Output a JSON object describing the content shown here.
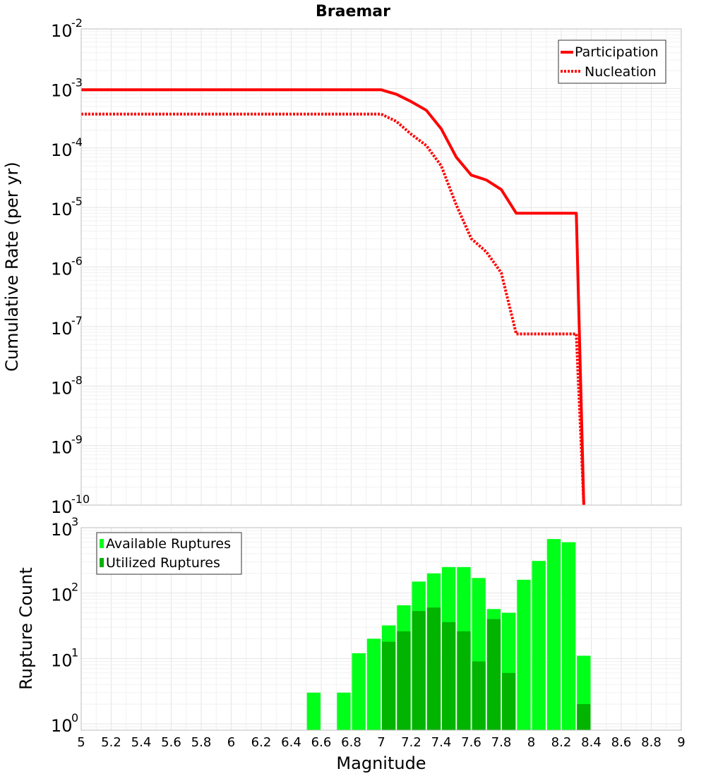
{
  "colors": {
    "participation": "#ff0000",
    "nucleation": "#ff0000",
    "available": "#00ff19",
    "utilized": "#00b400"
  },
  "chart_data": [
    {
      "type": "line",
      "title": "Braemar",
      "ylabel": "Cumulative Rate (per yr)",
      "xlim": [
        5,
        9
      ],
      "ylim": [
        1e-10,
        0.01
      ],
      "yscale": "log",
      "yticks": [
        {
          "base": "10",
          "exp": "-2"
        },
        {
          "base": "10",
          "exp": "-3"
        },
        {
          "base": "10",
          "exp": "-4"
        },
        {
          "base": "10",
          "exp": "-5"
        },
        {
          "base": "10",
          "exp": "-6"
        },
        {
          "base": "10",
          "exp": "-7"
        },
        {
          "base": "10",
          "exp": "-8"
        },
        {
          "base": "10",
          "exp": "-9"
        },
        {
          "base": "10",
          "exp": "-10"
        }
      ],
      "grid": true,
      "legend": "top-right",
      "series": [
        {
          "name": "Participation",
          "style": "solid",
          "x": [
            5,
            6,
            7,
            7.1,
            7.2,
            7.3,
            7.4,
            7.5,
            7.6,
            7.7,
            7.8,
            7.9,
            8.0,
            8.1,
            8.2,
            8.3,
            8.35
          ],
          "y": [
            0.00095,
            0.00095,
            0.00095,
            0.0008,
            0.0006,
            0.00043,
            0.00021,
            7e-05,
            3.5e-05,
            2.9e-05,
            2e-05,
            8e-06,
            8e-06,
            8e-06,
            8e-06,
            8e-06,
            1e-10
          ]
        },
        {
          "name": "Nucleation",
          "style": "dotted",
          "x": [
            5,
            6,
            7,
            7.1,
            7.2,
            7.3,
            7.4,
            7.5,
            7.6,
            7.7,
            7.8,
            7.9,
            8.0,
            8.1,
            8.2,
            8.3,
            8.35
          ],
          "y": [
            0.00037,
            0.00037,
            0.00037,
            0.00028,
            0.00017,
            0.00011,
            5e-05,
            1.1e-05,
            3e-06,
            1.8e-06,
            8e-07,
            7.5e-08,
            7.5e-08,
            7.5e-08,
            7.5e-08,
            7.5e-08,
            1e-10
          ]
        }
      ]
    },
    {
      "type": "bar",
      "xlabel": "Magnitude",
      "ylabel": "Rupture Count",
      "xlim": [
        5,
        9
      ],
      "ylim": [
        0.8,
        1000
      ],
      "yscale": "log",
      "yticks": [
        {
          "base": "10",
          "exp": "0"
        },
        {
          "base": "10",
          "exp": "1"
        },
        {
          "base": "10",
          "exp": "2"
        },
        {
          "base": "10",
          "exp": "3"
        }
      ],
      "xticks": [
        "5",
        "5.2",
        "5.4",
        "5.6",
        "5.8",
        "6",
        "6.2",
        "6.4",
        "6.6",
        "6.8",
        "7",
        "7.2",
        "7.4",
        "7.6",
        "7.8",
        "8",
        "8.2",
        "8.4",
        "8.6",
        "8.8",
        "9"
      ],
      "grid": true,
      "legend": "top-left",
      "bin_width": 0.1,
      "series": [
        {
          "name": "Available Ruptures",
          "x": [
            6.55,
            6.75,
            6.85,
            6.95,
            7.05,
            7.15,
            7.25,
            7.35,
            7.45,
            7.55,
            7.65,
            7.75,
            7.85,
            7.95,
            8.05,
            8.15,
            8.25,
            8.35
          ],
          "values": [
            3,
            3,
            12,
            20,
            32,
            65,
            150,
            200,
            250,
            250,
            170,
            57,
            50,
            160,
            310,
            670,
            600,
            11
          ]
        },
        {
          "name": "Utilized Ruptures",
          "x": [
            7.05,
            7.15,
            7.25,
            7.35,
            7.45,
            7.55,
            7.65,
            7.75,
            7.85,
            8.35
          ],
          "values": [
            18,
            26,
            53,
            60,
            36,
            26,
            9,
            40,
            6,
            2
          ]
        }
      ]
    }
  ]
}
